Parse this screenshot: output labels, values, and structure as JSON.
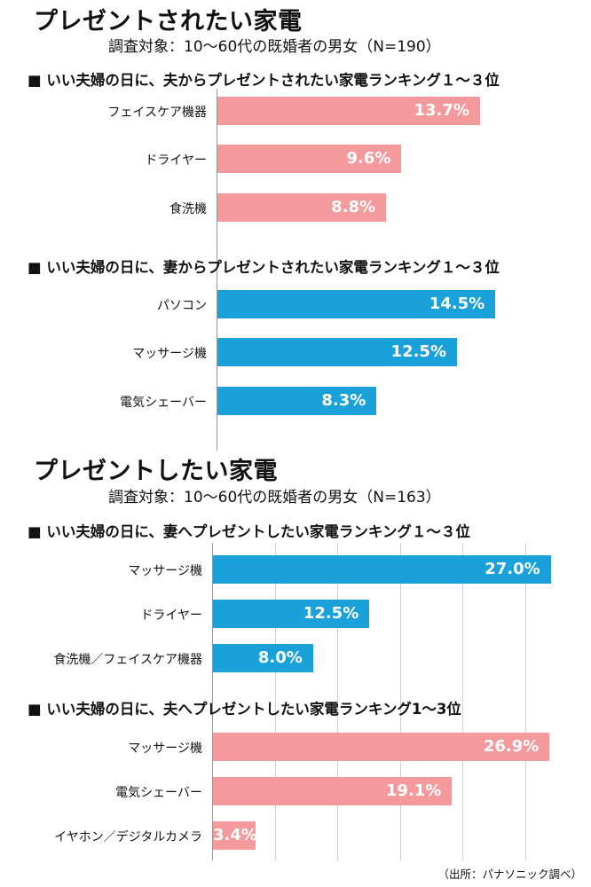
{
  "colors": {
    "pink": "#f4999c",
    "blue": "#1ba1d9"
  },
  "section1": {
    "title": "プレゼントされたい家電",
    "subtitle": "調査対象：10〜60代の既婚者の男女（N=190）"
  },
  "section2": {
    "title": "プレゼントしたい家電",
    "subtitle": "調査対象：10〜60代の既婚者の男女（N=163）"
  },
  "source": "（出所：パナソニック調べ）",
  "chart_data": [
    {
      "type": "bar",
      "orientation": "horizontal",
      "title": "■ いい夫婦の日に、夫からプレゼントされたい家電ランキング１〜３位",
      "categories": [
        "フェイスケア機器",
        "ドライヤー",
        "食洗機"
      ],
      "values": [
        13.7,
        9.6,
        8.8
      ],
      "labels": [
        "13.7%",
        "9.6%",
        "8.8%"
      ],
      "unit": "%",
      "color": "#f4999c",
      "xlim": [
        0,
        30
      ]
    },
    {
      "type": "bar",
      "orientation": "horizontal",
      "title": "■ いい夫婦の日に、妻からプレゼントされたい家電ランキング１〜３位",
      "categories": [
        "パソコン",
        "マッサージ機",
        "電気シェーバー"
      ],
      "values": [
        14.5,
        12.5,
        8.3
      ],
      "labels": [
        "14.5%",
        "12.5%",
        "8.3%"
      ],
      "unit": "%",
      "color": "#1ba1d9",
      "xlim": [
        0,
        30
      ]
    },
    {
      "type": "bar",
      "orientation": "horizontal",
      "title": "■ いい夫婦の日に、妻へプレゼントしたい家電ランキング１〜３位",
      "categories": [
        "マッサージ機",
        "ドライヤー",
        "食洗機／フェイスケア機器"
      ],
      "values": [
        27.0,
        12.5,
        8.0
      ],
      "labels": [
        "27.0%",
        "12.5%",
        "8.0%"
      ],
      "unit": "%",
      "color": "#1ba1d9",
      "xlim": [
        0,
        27.5
      ],
      "grid": true
    },
    {
      "type": "bar",
      "orientation": "horizontal",
      "title": "■ いい夫婦の日に、夫へプレゼントしたい家電ランキング1〜3位",
      "categories": [
        "マッサージ機",
        "電気シェーバー",
        "イヤホン／デジタルカメラ"
      ],
      "values": [
        26.9,
        19.1,
        3.4
      ],
      "labels": [
        "26.9%",
        "19.1%",
        "3.4%"
      ],
      "unit": "%",
      "color": "#f4999c",
      "xlim": [
        0,
        27.5
      ],
      "grid": true
    }
  ]
}
